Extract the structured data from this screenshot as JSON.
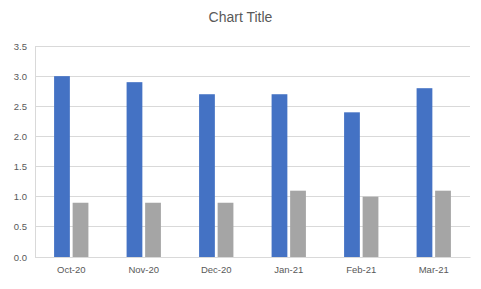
{
  "chart_data": {
    "type": "bar",
    "title": "Chart Title",
    "categories": [
      "Oct-20",
      "Nov-20",
      "Dec-20",
      "Jan-21",
      "Feb-21",
      "Mar-21"
    ],
    "series": [
      {
        "color": "#4472c4",
        "values": [
          3.0,
          2.9,
          2.7,
          2.7,
          2.4,
          2.8
        ]
      },
      {
        "color": "#a5a5a5",
        "values": [
          0.9,
          0.9,
          0.9,
          1.1,
          1.0,
          1.1
        ]
      }
    ],
    "ylim": [
      0,
      3.5
    ],
    "yticks": [
      {
        "value": 0,
        "label": "0.0"
      },
      0.5,
      {
        "value": 1,
        "label": "1.0"
      },
      1.5,
      {
        "value": 2,
        "label": "2.0"
      },
      2.5,
      {
        "value": 3,
        "label": "3.0"
      },
      3.5
    ],
    "grid": true
  }
}
